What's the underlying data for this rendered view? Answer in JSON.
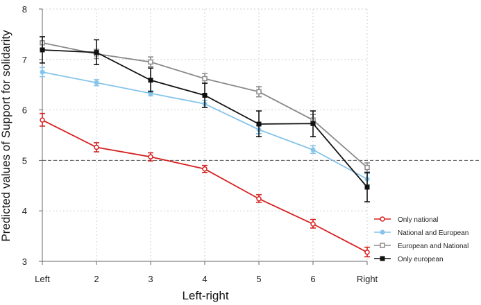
{
  "chart_data": {
    "type": "line",
    "title": "",
    "xlabel": "Left-right",
    "ylabel": "Predicted values of Support for solidarity",
    "categories": [
      "Left",
      "2",
      "3",
      "4",
      "5",
      "6",
      "Right"
    ],
    "ylim": [
      3,
      8
    ],
    "yticks": [
      "3",
      "4",
      "5",
      "6",
      "7",
      "8"
    ],
    "reference_line": 5,
    "grid": true,
    "legend_position": "bottom-right",
    "series": [
      {
        "name": "Only national",
        "color": "#d62020",
        "marker": "hollow-circle",
        "values": [
          5.8,
          5.26,
          5.07,
          4.83,
          4.24,
          3.74,
          3.18
        ],
        "ci_low": [
          5.68,
          5.17,
          4.99,
          4.76,
          4.17,
          3.66,
          3.09
        ],
        "ci_high": [
          5.93,
          5.35,
          5.15,
          4.9,
          4.32,
          3.83,
          3.28
        ]
      },
      {
        "name": "National and European",
        "color": "#86c4ea",
        "marker": "circle",
        "values": [
          6.75,
          6.54,
          6.33,
          6.12,
          5.61,
          5.21,
          4.63
        ],
        "ci_low": [
          6.66,
          6.48,
          6.28,
          6.05,
          5.53,
          5.14,
          4.52
        ],
        "ci_high": [
          6.84,
          6.6,
          6.38,
          6.19,
          5.69,
          5.29,
          4.74
        ]
      },
      {
        "name": "European and National",
        "color": "#8a8a8a",
        "marker": "hollow-square",
        "values": [
          7.33,
          7.11,
          6.95,
          6.62,
          6.36,
          5.8,
          4.86
        ],
        "ci_low": [
          7.21,
          7.02,
          6.86,
          6.53,
          6.26,
          5.7,
          4.77
        ],
        "ci_high": [
          7.45,
          7.2,
          7.05,
          6.72,
          6.46,
          5.91,
          4.95
        ]
      },
      {
        "name": "Only european",
        "color": "#111111",
        "marker": "square",
        "values": [
          7.19,
          7.14,
          6.59,
          6.29,
          5.72,
          5.73,
          4.47
        ],
        "ci_low": [
          6.93,
          6.9,
          6.36,
          6.05,
          5.47,
          5.47,
          4.18
        ],
        "ci_high": [
          7.45,
          7.39,
          6.83,
          6.53,
          5.98,
          5.98,
          4.76
        ]
      }
    ]
  }
}
